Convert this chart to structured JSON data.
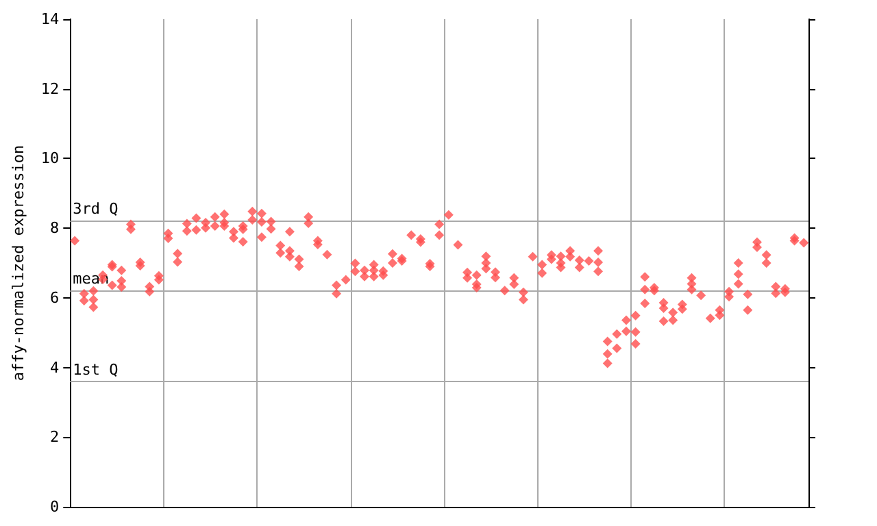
{
  "chart_data": {
    "type": "scatter",
    "ylabel": "affy-normalized expression",
    "marker": "diamond",
    "grid": "x",
    "categories": [
      null,
      null,
      null,
      null,
      null,
      null,
      null,
      null,
      null,
      null,
      null,
      null,
      null,
      null,
      null,
      null,
      null,
      null,
      null,
      null,
      null,
      null,
      null,
      null,
      null,
      null,
      null,
      null,
      null,
      null,
      null,
      null,
      null,
      null,
      null,
      null,
      null,
      null,
      null,
      null,
      null,
      null,
      null,
      null,
      null,
      null,
      null,
      null,
      null,
      null,
      null,
      null,
      null,
      null,
      null,
      null,
      null,
      null,
      null,
      null,
      null,
      null,
      null,
      null,
      null,
      null,
      null,
      null,
      null,
      null,
      null,
      null,
      null,
      null,
      null,
      null,
      null,
      null,
      null
    ],
    "ylim": [
      0,
      14
    ],
    "yticks": [
      0,
      2,
      4,
      6,
      8,
      10,
      12,
      14
    ],
    "ref_lines": [
      {
        "axis": "y",
        "value": 8.22,
        "label": "3rd Q",
        "color": "#aaaaaa"
      },
      {
        "axis": "y",
        "value": 6.21,
        "label": "mean",
        "color": "#aaaaaa"
      },
      {
        "axis": "y",
        "value": 3.6,
        "label": "1st Q",
        "color": "#aaaaaa"
      }
    ],
    "series": [
      {
        "color": "#ff4d4d",
        "values": [
          7.64,
          6.12,
          6.2,
          6.65,
          6.95,
          6.79,
          8.11,
          7.02,
          6.32,
          6.63,
          7.85,
          7.27,
          8.13,
          8.29,
          8.16,
          8.32,
          8.4,
          7.9,
          8.06,
          8.48,
          8.42,
          8.19,
          7.5,
          7.9,
          7.11,
          8.32,
          7.64,
          7.24,
          6.36,
          6.52,
          6.99,
          6.79,
          6.95,
          6.77,
          7.26,
          7.13,
          7.8,
          7.69,
          6.98,
          8.11,
          8.38,
          7.52,
          6.73,
          6.65,
          7.19,
          6.74,
          6.21,
          6.57,
          6.16,
          7.18,
          6.95,
          7.23,
          7.19,
          7.35,
          7.08,
          7.06,
          7.35,
          4.75,
          4.96,
          5.36,
          5.49,
          6.6,
          6.29,
          5.86,
          5.58,
          5.81,
          6.57,
          6.07,
          5.41,
          5.65,
          6.18,
          7.0,
          6.1,
          7.6,
          7.23,
          6.32,
          6.26,
          7.72,
          7.58
        ]
      },
      {
        "color": "#ff4d4d",
        "values": [
          null,
          5.92,
          5.95,
          6.53,
          6.89,
          6.49,
          7.97,
          6.92,
          6.18,
          6.52,
          7.71,
          7.03,
          7.92,
          7.95,
          8.01,
          8.06,
          8.16,
          7.72,
          7.97,
          8.24,
          8.18,
          7.98,
          7.29,
          7.35,
          6.9,
          8.14,
          7.53,
          null,
          6.12,
          null,
          6.76,
          6.61,
          6.79,
          6.65,
          7.0,
          7.06,
          null,
          7.6,
          6.9,
          7.8,
          null,
          null,
          6.57,
          6.39,
          7.0,
          6.58,
          null,
          6.39,
          5.95,
          null,
          6.71,
          7.11,
          7.0,
          7.18,
          6.87,
          null,
          7.02,
          4.39,
          4.55,
          5.04,
          5.02,
          6.24,
          6.21,
          5.7,
          5.36,
          5.68,
          6.4,
          null,
          null,
          5.5,
          6.03,
          6.68,
          5.65,
          7.45,
          7.0,
          6.13,
          6.16,
          7.64,
          null
        ]
      },
      {
        "color": "#ff4d4d",
        "values": [
          null,
          null,
          5.73,
          null,
          6.36,
          6.31,
          null,
          null,
          null,
          null,
          null,
          null,
          null,
          null,
          null,
          null,
          8.06,
          null,
          7.61,
          null,
          7.74,
          null,
          null,
          7.18,
          null,
          null,
          null,
          null,
          null,
          null,
          null,
          null,
          6.61,
          null,
          null,
          null,
          null,
          null,
          null,
          null,
          null,
          null,
          null,
          6.29,
          6.84,
          null,
          null,
          null,
          null,
          null,
          null,
          null,
          6.87,
          null,
          null,
          null,
          6.76,
          4.12,
          null,
          null,
          4.68,
          5.84,
          null,
          5.33,
          null,
          null,
          6.24,
          null,
          null,
          null,
          null,
          6.4,
          null,
          null,
          null,
          null,
          null,
          null,
          null
        ]
      }
    ]
  }
}
